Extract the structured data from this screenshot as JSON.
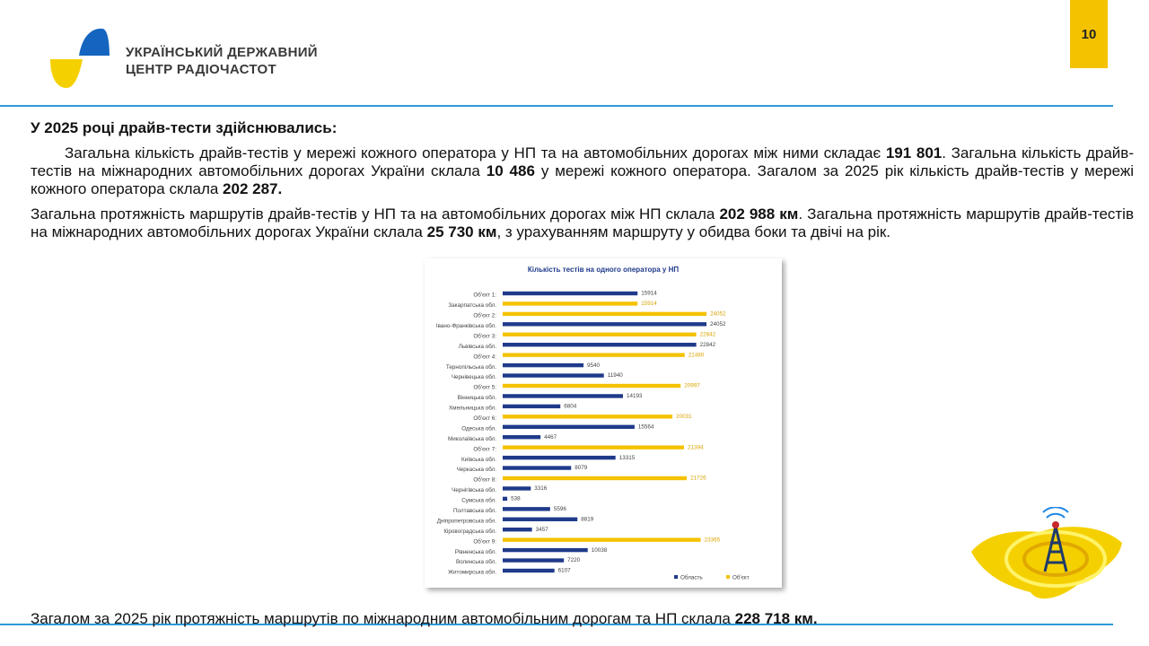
{
  "header": {
    "org_line1": "УКРАЇНСЬКИЙ ДЕРЖАВНИЙ",
    "org_line2": "ЦЕНТР РАДІОЧАСТОТ",
    "page_number": "10"
  },
  "heading": "У 2025 році драйв-тести здійснювались:",
  "paragraphs": [
    [
      {
        "text": "Загальна кількість драйв-тестів у мережі кожного оператора у НП та на автомобільних дорогах між ними складає ",
        "bold": false
      },
      {
        "text": "191 801",
        "bold": true
      },
      {
        "text": ". Загальна кількість драйв-тестів на міжнародних автомобільних дорогах України склала ",
        "bold": false
      },
      {
        "text": "10 486",
        "bold": true
      },
      {
        "text": " у мережі кожного оператора. Загалом за 2025 рік кількість драйв-тестів у мережі кожного оператора склала ",
        "bold": false
      },
      {
        "text": "202 287.",
        "bold": true
      }
    ],
    [
      {
        "text": "Загальна протяжність маршрутів драйв-тестів у НП та на автомобільних дорогах між НП склала ",
        "bold": false
      },
      {
        "text": "202 988 км",
        "bold": true
      },
      {
        "text": ". Загальна протяжність маршрутів драйв-тестів на міжнародних автомобільних дорогах України склала ",
        "bold": false
      },
      {
        "text": "25 730 км",
        "bold": true
      },
      {
        "text": ", з урахуванням маршруту у обидва боки та двічі на рік.",
        "bold": false
      }
    ]
  ],
  "footer": [
    {
      "text": "Загалом за 2025 рік протяжність маршрутів по міжнародним автомобільним дорогам та НП склала ",
      "bold": false
    },
    {
      "text": "228 718 км.",
      "bold": true
    }
  ],
  "chart_data": {
    "type": "hbar",
    "title": "Кількість тестів на одного оператора у НП",
    "categories": [
      "Об'єкт 1:",
      "Закарпатська обл.",
      "Об'єкт 2:",
      "Івано-Франківська обл.",
      "Об'єкт 3:",
      "Львівська обл.",
      "Об'єкт 4:",
      "Тернопільська обл.",
      "Чернівецька обл.",
      "Об'єкт 5:",
      "Вінницька обл.",
      "Хмельницька обл.",
      "Об'єкт 6:",
      "Одеська обл.",
      "Миколаївська обл.",
      "Об'єкт 7:",
      "Київська обл.",
      "Черкаська обл.",
      "Об'єкт 8:",
      "Чернігівська обл.",
      "Сумська обл.",
      "Полтавська обл.",
      "Дніпропетровська обл.",
      "Кіровоградська обл.",
      "Об'єкт 9:",
      "Рівненська обл.",
      "Волинська обл.",
      "Житомирська обл."
    ],
    "series": [
      {
        "name": "Область",
        "color": "#1f3a8a",
        "values": [
          15914,
          null,
          null,
          24052,
          null,
          22842,
          null,
          9540,
          11940,
          null,
          14193,
          6804,
          null,
          15564,
          4467,
          null,
          13315,
          8079,
          null,
          3316,
          538,
          5596,
          8819,
          3457,
          null,
          10038,
          7220,
          6107
        ]
      },
      {
        "name": "Об'єкт",
        "color": "#f5c200",
        "values": [
          null,
          15914,
          24052,
          null,
          22842,
          null,
          21480,
          null,
          null,
          20997,
          null,
          null,
          20031,
          null,
          null,
          21394,
          null,
          null,
          21726,
          null,
          null,
          null,
          null,
          null,
          23365,
          null,
          null,
          null
        ]
      }
    ],
    "xlim": [
      0,
      25000
    ],
    "legend": "bottom-right"
  }
}
